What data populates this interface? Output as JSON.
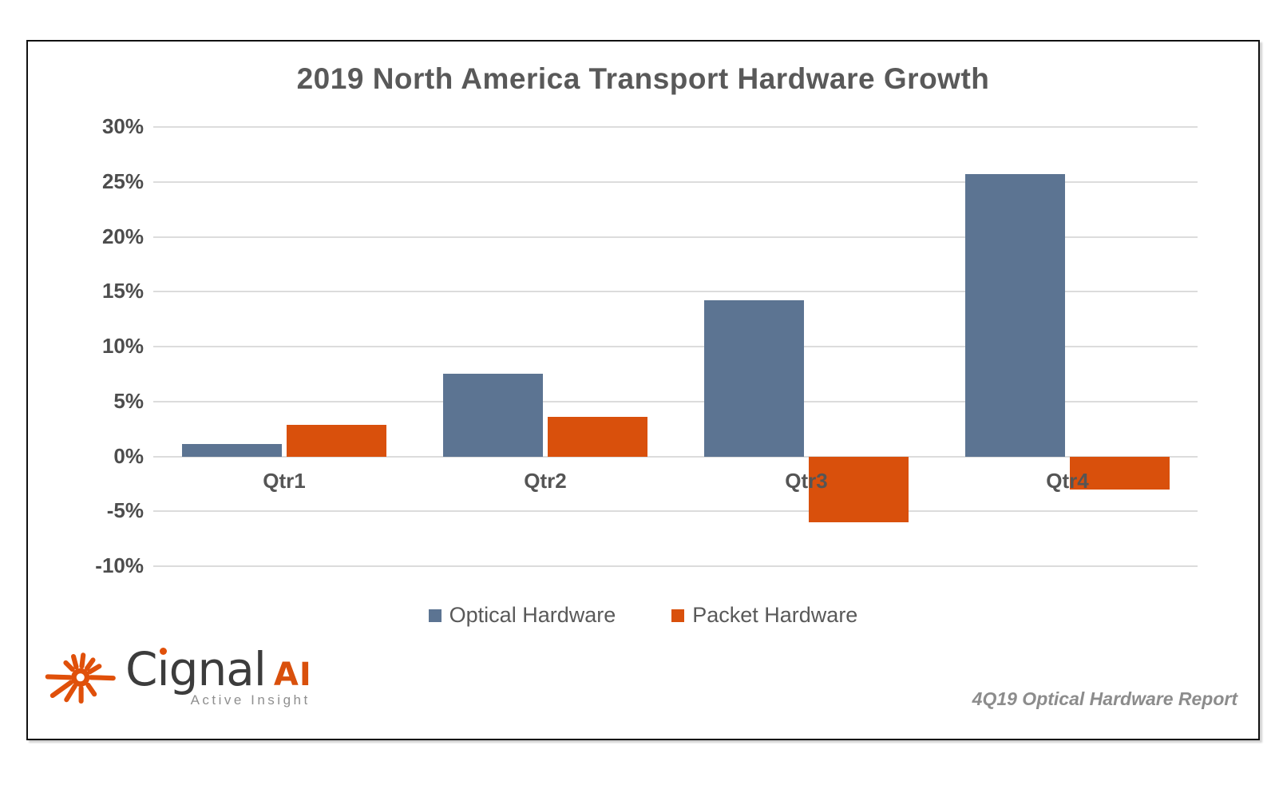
{
  "chart_data": {
    "type": "bar",
    "title": "2019 North America Transport Hardware Growth",
    "categories": [
      "Qtr1",
      "Qtr2",
      "Qtr3",
      "Qtr4"
    ],
    "series": [
      {
        "name": "Optical Hardware",
        "color": "#5C7492",
        "values": [
          1.1,
          7.5,
          14.2,
          25.7
        ]
      },
      {
        "name": "Packet Hardware",
        "color": "#D9500C",
        "values": [
          2.9,
          3.6,
          -6.0,
          -3.0
        ]
      }
    ],
    "ylim": [
      -10,
      30
    ],
    "ytick_interval": 5,
    "ytick_labels": [
      "30%",
      "25%",
      "20%",
      "15%",
      "10%",
      "5%",
      "0%",
      "-5%",
      "-10%"
    ],
    "grid": true,
    "gridline_color": "#dcdcdc",
    "legend_position": "bottom"
  },
  "branding": {
    "logo_name": "C",
    "logo_name_rest": "gnal",
    "logo_suffix": "AI",
    "tagline": "Active Insight",
    "logo_orange": "#D9500C",
    "logo_gray": "#3c3c3c",
    "starburst_icon": "laser-starburst-icon"
  },
  "footer": {
    "report_label": "4Q19 Optical Hardware Report"
  }
}
